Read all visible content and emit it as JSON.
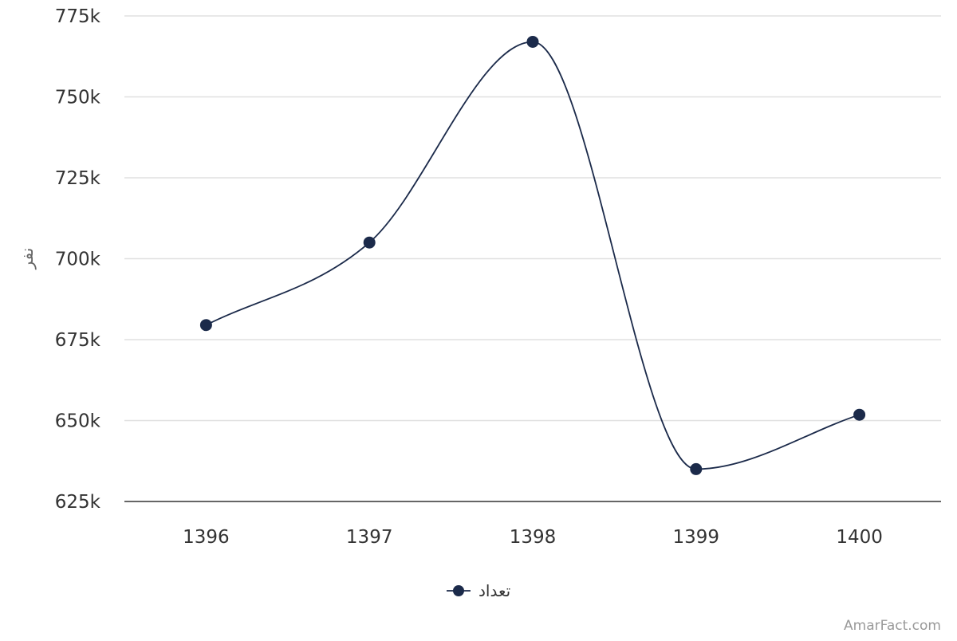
{
  "chart_data": {
    "type": "line",
    "smoothing": "spline",
    "categories": [
      "1396",
      "1397",
      "1398",
      "1399",
      "1400"
    ],
    "series": [
      {
        "name": "تعداد",
        "values": [
          679500,
          705000,
          767000,
          635000,
          651800
        ],
        "color": "#1b2a4a"
      }
    ],
    "ylim": [
      625000,
      775000
    ],
    "yticks": [
      625000,
      650000,
      675000,
      700000,
      725000,
      750000,
      775000
    ],
    "ytick_labels": [
      "625k",
      "650k",
      "675k",
      "700k",
      "725k",
      "750k",
      "775k"
    ],
    "ylabel": "نفر",
    "xlabel": "",
    "grid": true,
    "legend_position": "bottom-center"
  },
  "credit": "AmarFact.com",
  "colors": {
    "series": "#1b2a4a",
    "grid": "#e0e0e0",
    "axis": "#333333",
    "text": "#333333",
    "credit": "#999999"
  }
}
